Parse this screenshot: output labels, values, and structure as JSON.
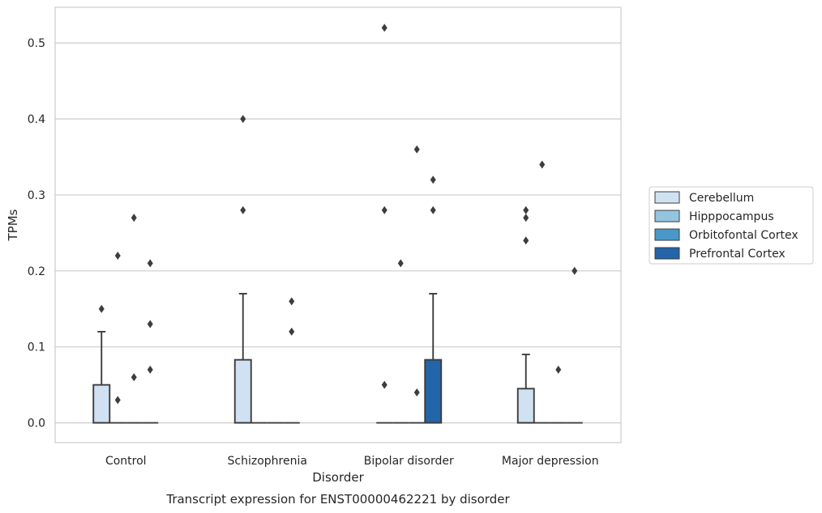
{
  "chart_data": {
    "type": "box",
    "title": "",
    "caption": "Transcript expression for ENST00000462221 by disorder",
    "xlabel": "Disorder",
    "ylabel": "TPMs",
    "ylim": [
      -0.026,
      0.547
    ],
    "yticks": [
      0.0,
      0.1,
      0.2,
      0.3,
      0.4,
      0.5
    ],
    "ytick_labels": [
      "0.0",
      "0.1",
      "0.2",
      "0.3",
      "0.4",
      "0.5"
    ],
    "grid": "horizontal",
    "legend_position": "right",
    "categories": [
      "Control",
      "Schizophrenia",
      "Bipolar disorder",
      "Major depression"
    ],
    "series": [
      {
        "name": "Cerebellum",
        "color": "#d0e1f2",
        "boxes": [
          {
            "min": 0,
            "q1": 0,
            "median": 0,
            "q3": 0.05,
            "max": 0.12,
            "outliers": [
              0.15
            ]
          },
          {
            "min": 0,
            "q1": 0,
            "median": 0,
            "q3": 0.083,
            "max": 0.17,
            "outliers": [
              0.28,
              0.4
            ]
          },
          {
            "min": 0,
            "q1": 0,
            "median": 0,
            "q3": 0,
            "max": 0,
            "outliers": [
              0.05,
              0.28,
              0.52
            ]
          },
          {
            "min": 0,
            "q1": 0,
            "median": 0,
            "q3": 0.045,
            "max": 0.09,
            "outliers": [
              0.24,
              0.27,
              0.28
            ]
          }
        ]
      },
      {
        "name": "Hipppocampus",
        "color": "#94c4df",
        "boxes": [
          {
            "min": 0,
            "q1": 0,
            "median": 0,
            "q3": 0,
            "max": 0,
            "outliers": [
              0.03,
              0.22
            ]
          },
          {
            "min": 0,
            "q1": 0,
            "median": 0,
            "q3": 0,
            "max": 0,
            "outliers": []
          },
          {
            "min": 0,
            "q1": 0,
            "median": 0,
            "q3": 0,
            "max": 0,
            "outliers": [
              0.21
            ]
          },
          {
            "min": 0,
            "q1": 0,
            "median": 0,
            "q3": 0,
            "max": 0,
            "outliers": [
              0.34
            ]
          }
        ]
      },
      {
        "name": "Orbitofontal Cortex",
        "color": "#4a98c9",
        "boxes": [
          {
            "min": 0,
            "q1": 0,
            "median": 0,
            "q3": 0,
            "max": 0,
            "outliers": [
              0.06,
              0.27
            ]
          },
          {
            "min": 0,
            "q1": 0,
            "median": 0,
            "q3": 0,
            "max": 0,
            "outliers": []
          },
          {
            "min": 0,
            "q1": 0,
            "median": 0,
            "q3": 0,
            "max": 0,
            "outliers": [
              0.04,
              0.36
            ]
          },
          {
            "min": 0,
            "q1": 0,
            "median": 0,
            "q3": 0,
            "max": 0,
            "outliers": [
              0.07
            ]
          }
        ]
      },
      {
        "name": "Prefrontal Cortex",
        "color": "#2464a8",
        "boxes": [
          {
            "min": 0,
            "q1": 0,
            "median": 0,
            "q3": 0,
            "max": 0,
            "outliers": [
              0.07,
              0.13,
              0.21
            ]
          },
          {
            "min": 0,
            "q1": 0,
            "median": 0,
            "q3": 0,
            "max": 0,
            "outliers": [
              0.12,
              0.16
            ]
          },
          {
            "min": 0,
            "q1": 0,
            "median": 0,
            "q3": 0.083,
            "max": 0.17,
            "outliers": [
              0.28,
              0.32
            ]
          },
          {
            "min": 0,
            "q1": 0,
            "median": 0,
            "q3": 0,
            "max": 0,
            "outliers": [
              0.2
            ]
          }
        ]
      }
    ]
  }
}
